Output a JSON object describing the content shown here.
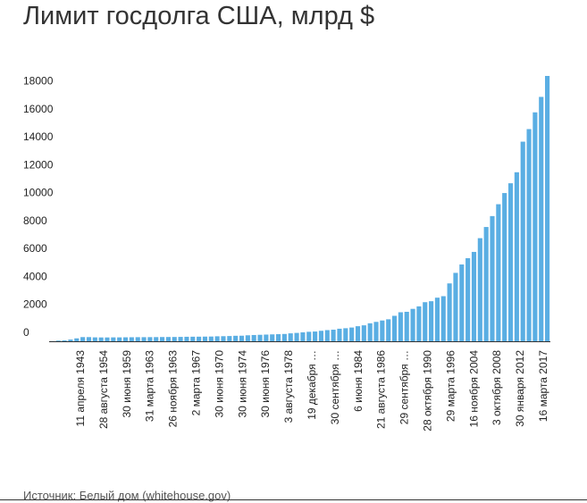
{
  "title": "Лимит госдолга США, млрд $",
  "source": "Источник: Белый дом (whitehouse.gov)",
  "colors": {
    "bar": "#5aaee3",
    "axis": "#333333",
    "text": "#222222"
  },
  "chart_data": {
    "type": "bar",
    "title": "Лимит госдолга США, млрд $",
    "xlabel": "",
    "ylabel": "",
    "ylim": [
      0,
      19000
    ],
    "yticks": [
      0,
      2000,
      4000,
      6000,
      8000,
      10000,
      12000,
      14000,
      16000,
      18000
    ],
    "grid": false,
    "legend": "none",
    "tick_labels": [
      "11 апреля 1943",
      "28 августа 1954",
      "30 июня 1959",
      "31 марта 1963",
      "26 ноября 1963",
      "2 марта 1967",
      "30 июня 1970",
      "30 июня 1974",
      "30 июня 1976",
      "3 августа 1978",
      "19 декабря …",
      "30 сентября …",
      "6 июня 1984",
      "21 августа 1986",
      "29 сентября …",
      "28 октября 1990",
      "29 марта 1996",
      "16 ноября 2004",
      "3 октября 2008",
      "30 января 2012",
      "16 марта 2017"
    ],
    "values": [
      15,
      50,
      65,
      125,
      210,
      300,
      300,
      281,
      275,
      275,
      280,
      280,
      285,
      290,
      295,
      295,
      298,
      300,
      305,
      307,
      309,
      315,
      324,
      328,
      330,
      336,
      341,
      358,
      365,
      377,
      395,
      400,
      430,
      450,
      465,
      480,
      495,
      510,
      525,
      570,
      600,
      640,
      680,
      700,
      752,
      800,
      830,
      900,
      935,
      985,
      1080,
      1143,
      1290,
      1390,
      1490,
      1575,
      1823,
      2079,
      2111,
      2323,
      2500,
      2800,
      2870,
      3123,
      3230,
      4145,
      4900,
      5500,
      5950,
      6400,
      7384,
      8184,
      8965,
      9815,
      10615,
      11315,
      12104,
      14294,
      15194,
      16394,
      17500,
      19000
    ]
  }
}
